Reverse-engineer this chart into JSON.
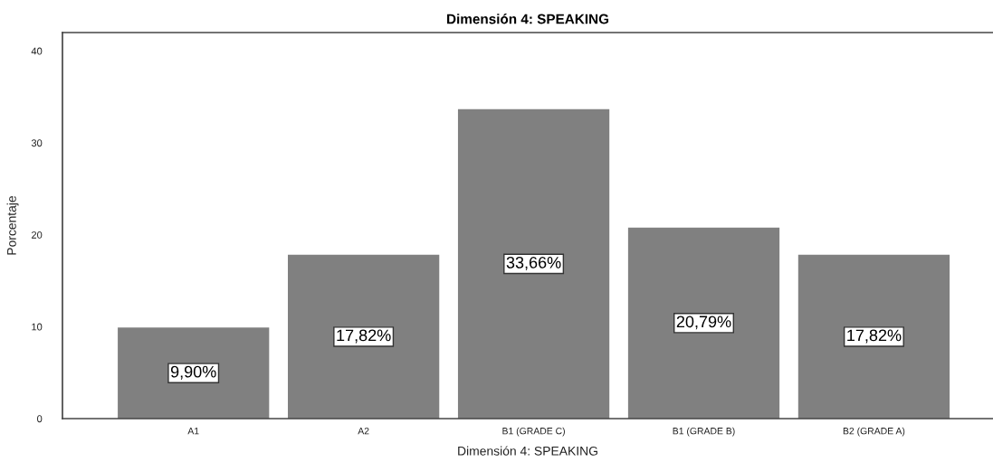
{
  "chart_data": {
    "type": "bar",
    "title": "Dimensión 4: SPEAKING",
    "xlabel": "Dimensión 4: SPEAKING",
    "ylabel": "Porcentaje",
    "categories": [
      "A1",
      "A2",
      "B1 (GRADE C)",
      "B1 (GRADE B)",
      "B2 (GRADE A)"
    ],
    "values": [
      9.9,
      17.82,
      33.66,
      20.79,
      17.82
    ],
    "color": "#808080",
    "value_labels": [
      "9,90%",
      "17,82%",
      "33,66%",
      "20,79%",
      "17,82%"
    ],
    "ylim": [
      0,
      42
    ],
    "yticks": [
      0,
      10,
      20,
      30,
      40
    ],
    "grid": false,
    "legend": false
  }
}
